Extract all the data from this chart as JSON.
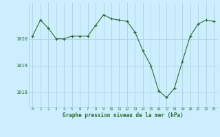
{
  "x": [
    0,
    1,
    2,
    3,
    4,
    5,
    6,
    7,
    8,
    9,
    10,
    11,
    12,
    13,
    14,
    15,
    16,
    17,
    18,
    19,
    20,
    21,
    22,
    23
  ],
  "y": [
    1020.1,
    1020.7,
    1020.4,
    1020.0,
    1020.0,
    1020.1,
    1020.1,
    1020.1,
    1020.5,
    1020.9,
    1020.75,
    1020.7,
    1020.65,
    1020.25,
    1019.55,
    1019.0,
    1018.05,
    1017.8,
    1018.15,
    1019.15,
    1020.1,
    1020.55,
    1020.7,
    1020.65
  ],
  "line_color": "#2d6a2d",
  "marker_color": "#2d6a2d",
  "bg_color": "#cceeff",
  "grid_color": "#aaccd8",
  "label_color": "#2d6a2d",
  "title": "Graphe pression niveau de la mer (hPa)",
  "xlabel_ticks": [
    0,
    1,
    2,
    3,
    4,
    5,
    6,
    7,
    8,
    9,
    10,
    11,
    12,
    13,
    14,
    15,
    16,
    17,
    18,
    19,
    20,
    21,
    22,
    23
  ],
  "yticks": [
    1018,
    1019,
    1020
  ],
  "ylim": [
    1017.45,
    1021.35
  ],
  "xlim": [
    -0.5,
    23.5
  ]
}
